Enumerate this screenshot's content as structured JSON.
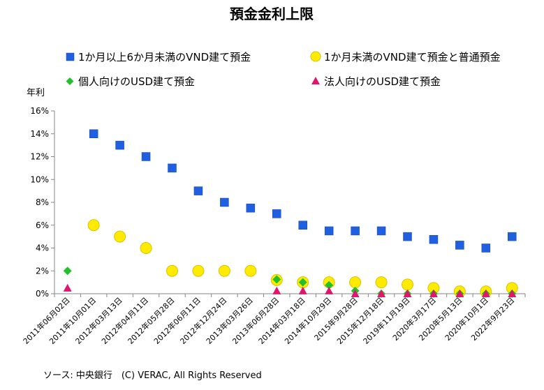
{
  "chart_data": {
    "type": "scatter",
    "title": "預金金利上限",
    "ylabel": "年利",
    "ylim": [
      0,
      16
    ],
    "yticks": [
      "0%",
      "2%",
      "4%",
      "6%",
      "8%",
      "10%",
      "12%",
      "14%",
      "16%"
    ],
    "grid": false,
    "legend_position": "top",
    "categories": [
      "2011年06月02日",
      "2011年10月01日",
      "2012年03月13日",
      "2012年04月11日",
      "2012年05月28日",
      "2012年06月11日",
      "2012年12月24日",
      "2013年03月26日",
      "2013年06月28日",
      "2014年03月18日",
      "2014年10月29日",
      "2015年9月28日",
      "2015年12月18日",
      "2019年11月19日",
      "2020年3月17日",
      "2020年5月13日",
      "2020年10月1日",
      "2022年9月23日"
    ],
    "series": [
      {
        "name": "1か月以上6か月未満のVND建て預金",
        "marker": "square",
        "color": "#1f5fe0",
        "values": [
          null,
          14,
          13,
          12,
          11,
          9,
          8,
          7.5,
          7,
          6,
          5.5,
          5.5,
          5.5,
          5,
          4.75,
          4.25,
          4,
          5
        ]
      },
      {
        "name": "1か月未満のVND建て預金と普通預金",
        "marker": "circle",
        "color": "#ffeb00",
        "values": [
          null,
          6,
          5,
          4,
          2,
          2,
          2,
          2,
          1.2,
          1,
          1,
          1,
          1,
          0.8,
          0.5,
          0.2,
          0.2,
          0.5
        ]
      },
      {
        "name": "個人向けのUSD建て預金",
        "marker": "diamond",
        "color": "#22c02a",
        "values": [
          2,
          null,
          null,
          null,
          null,
          null,
          null,
          null,
          1.25,
          1,
          0.75,
          0.25,
          0,
          0,
          0,
          0,
          0,
          0
        ]
      },
      {
        "name": "法人向けのUSD建て預金",
        "marker": "triangle",
        "color": "#e0156e",
        "values": [
          0.5,
          null,
          null,
          null,
          null,
          null,
          null,
          null,
          0.25,
          0.25,
          0.25,
          0,
          0,
          0,
          0,
          0,
          0,
          0
        ]
      }
    ]
  },
  "footer": {
    "source": "ソース: 中央銀行　(C) VERAC, All Rights Reserved"
  }
}
